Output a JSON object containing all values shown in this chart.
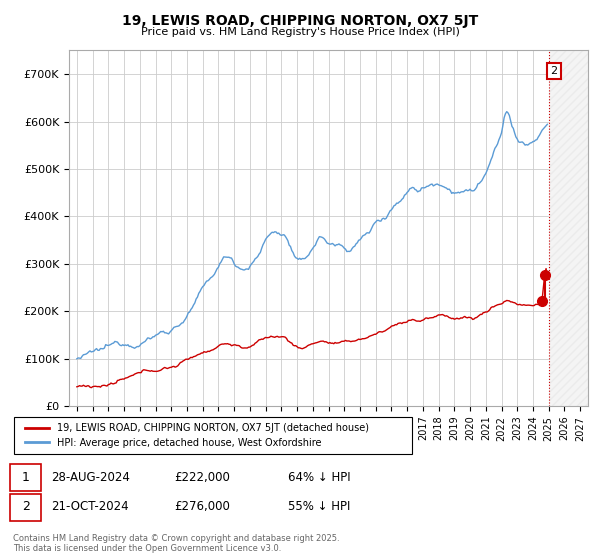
{
  "title": "19, LEWIS ROAD, CHIPPING NORTON, OX7 5JT",
  "subtitle": "Price paid vs. HM Land Registry's House Price Index (HPI)",
  "ylim": [
    0,
    750000
  ],
  "yticks": [
    0,
    100000,
    200000,
    300000,
    400000,
    500000,
    600000,
    700000
  ],
  "ytick_labels": [
    "£0",
    "£100K",
    "£200K",
    "£300K",
    "£400K",
    "£500K",
    "£600K",
    "£700K"
  ],
  "hpi_color": "#5b9bd5",
  "price_color": "#cc0000",
  "legend_label_price": "19, LEWIS ROAD, CHIPPING NORTON, OX7 5JT (detached house)",
  "legend_label_hpi": "HPI: Average price, detached house, West Oxfordshire",
  "annotation_1_label": "1",
  "annotation_1_date": "28-AUG-2024",
  "annotation_1_price": "£222,000",
  "annotation_1_pct": "64% ↓ HPI",
  "annotation_2_label": "2",
  "annotation_2_date": "21-OCT-2024",
  "annotation_2_price": "£276,000",
  "annotation_2_pct": "55% ↓ HPI",
  "footer": "Contains HM Land Registry data © Crown copyright and database right 2025.\nThis data is licensed under the Open Government Licence v3.0.",
  "background_color": "#ffffff",
  "grid_color": "#cccccc",
  "sale1_x": 2024.583,
  "sale1_y": 222000,
  "sale2_x": 2024.75,
  "sale2_y": 276000,
  "hatch_start": 2025.0,
  "xlim_left": 1994.5,
  "xlim_right": 2027.5
}
